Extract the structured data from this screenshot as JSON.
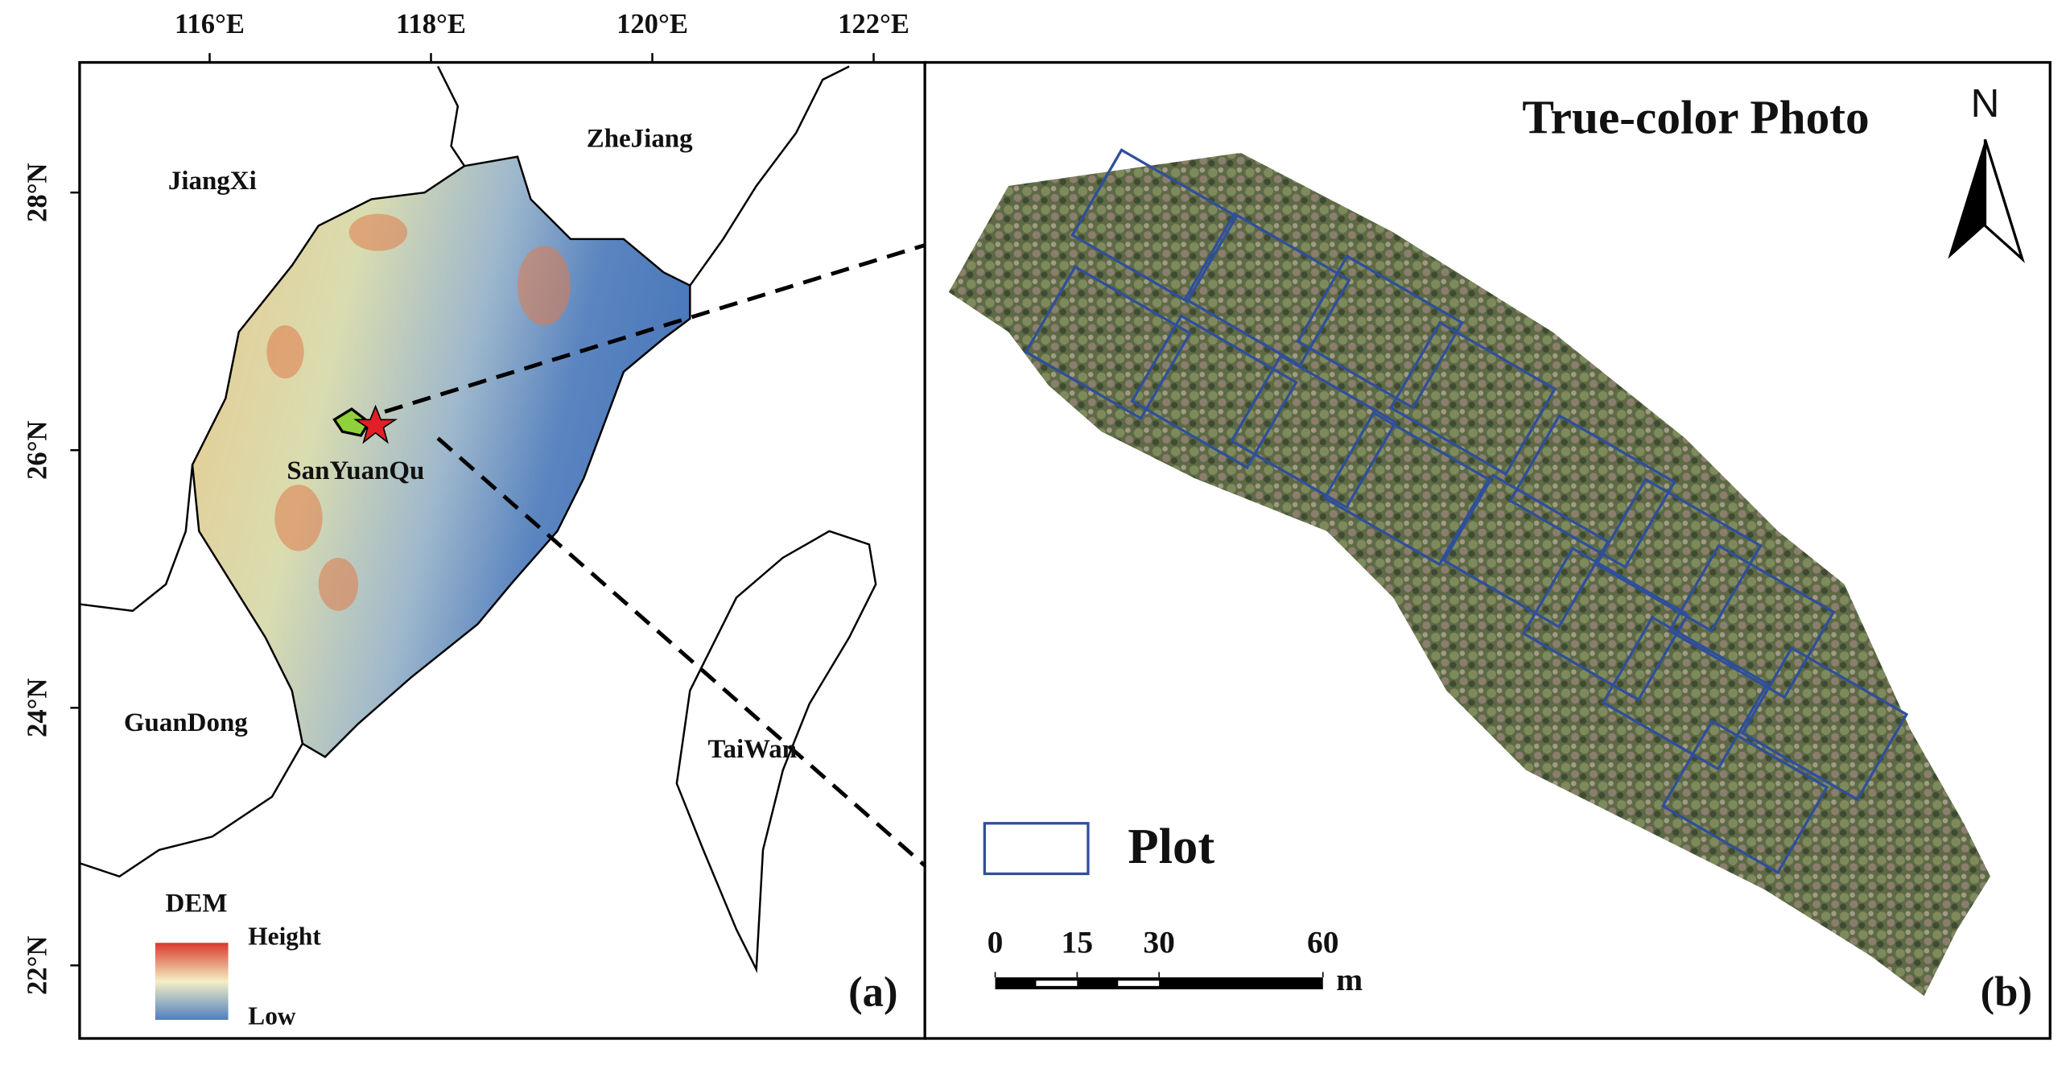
{
  "map_a": {
    "lon_ticks": [
      {
        "value": 116,
        "label": "116°E"
      },
      {
        "value": 118,
        "label": "118°E"
      },
      {
        "value": 120,
        "label": "120°E"
      },
      {
        "value": 122,
        "label": "122°E"
      }
    ],
    "lat_ticks": [
      {
        "value": 22,
        "label": "22°N"
      },
      {
        "value": 24,
        "label": "24°N"
      },
      {
        "value": 26,
        "label": "26°N"
      },
      {
        "value": 28,
        "label": "28°N"
      }
    ],
    "places": {
      "jiangxi": "JiangXi",
      "zhejiang": "ZheJiang",
      "sanyuanqu": "SanYuanQu",
      "guandong": "GuanDong",
      "taiwan": "TaiWan"
    },
    "legend": {
      "title": "DEM",
      "high": "Height",
      "low": "Low"
    },
    "panel_label": "(a)"
  },
  "map_b": {
    "title": "True-color Photo",
    "north": "N",
    "legend": {
      "label": "Plot"
    },
    "scale_bar": {
      "ticks": [
        0,
        15,
        30,
        60
      ],
      "unit": "m"
    },
    "panel_label": "(b)"
  }
}
